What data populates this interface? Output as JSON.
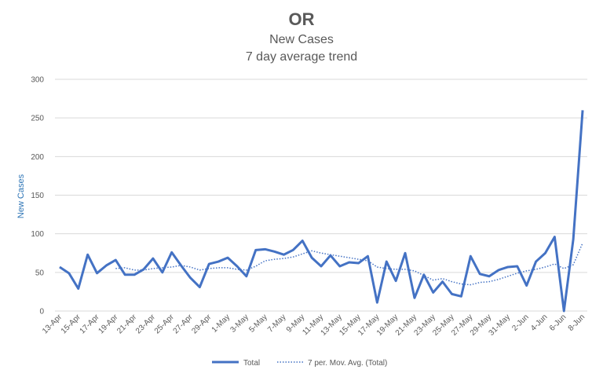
{
  "chart_data": {
    "type": "line",
    "title": "OR",
    "subtitle_1": "New Cases",
    "subtitle_2": "7 day average trend",
    "ylabel": "New Cases",
    "xlabel": "",
    "ylim": [
      0,
      300
    ],
    "yticks": [
      0,
      50,
      100,
      150,
      200,
      250,
      300
    ],
    "grid": "horizontal",
    "legend_position": "bottom",
    "x": [
      "13-Apr",
      "14-Apr",
      "15-Apr",
      "16-Apr",
      "17-Apr",
      "18-Apr",
      "19-Apr",
      "20-Apr",
      "21-Apr",
      "22-Apr",
      "23-Apr",
      "24-Apr",
      "25-Apr",
      "26-Apr",
      "27-Apr",
      "28-Apr",
      "29-Apr",
      "30-Apr",
      "1-May",
      "2-May",
      "3-May",
      "4-May",
      "5-May",
      "6-May",
      "7-May",
      "8-May",
      "9-May",
      "10-May",
      "11-May",
      "12-May",
      "13-May",
      "14-May",
      "15-May",
      "16-May",
      "17-May",
      "18-May",
      "19-May",
      "20-May",
      "21-May",
      "22-May",
      "23-May",
      "24-May",
      "25-May",
      "26-May",
      "27-May",
      "28-May",
      "29-May",
      "30-May",
      "31-May",
      "1-Jun",
      "2-Jun",
      "3-Jun",
      "4-Jun",
      "5-Jun",
      "6-Jun",
      "7-Jun",
      "8-Jun"
    ],
    "xtick_labels": [
      "13-Apr",
      "15-Apr",
      "17-Apr",
      "19-Apr",
      "21-Apr",
      "23-Apr",
      "25-Apr",
      "27-Apr",
      "29-Apr",
      "1-May",
      "3-May",
      "5-May",
      "7-May",
      "9-May",
      "11-May",
      "13-May",
      "15-May",
      "17-May",
      "19-May",
      "21-May",
      "23-May",
      "25-May",
      "27-May",
      "29-May",
      "31-May",
      "2-Jun",
      "4-Jun",
      "6-Jun",
      "8-Jun"
    ],
    "series": [
      {
        "name": "Total",
        "color": "#4472c4",
        "style": "solid",
        "values": [
          57,
          49,
          29,
          73,
          49,
          59,
          66,
          47,
          47,
          54,
          68,
          50,
          76,
          59,
          43,
          31,
          61,
          64,
          69,
          58,
          45,
          79,
          80,
          77,
          73,
          79,
          91,
          69,
          58,
          72,
          58,
          63,
          62,
          71,
          11,
          64,
          39,
          75,
          17,
          47,
          24,
          38,
          22,
          19,
          71,
          48,
          45,
          53,
          57,
          58,
          33,
          64,
          75,
          96,
          0,
          93,
          260
        ]
      },
      {
        "name": "7 per. Mov. Avg. (Total)",
        "color": "#4472c4",
        "style": "dotted",
        "values": [
          null,
          null,
          null,
          null,
          null,
          null,
          55,
          56,
          53,
          53,
          55,
          56,
          57,
          59,
          57,
          53,
          55,
          56,
          56,
          54,
          53,
          58,
          65,
          67,
          68,
          70,
          74,
          78,
          75,
          73,
          71,
          69,
          67,
          65,
          57,
          55,
          54,
          54,
          52,
          46,
          40,
          42,
          38,
          35,
          34,
          37,
          38,
          41,
          45,
          49,
          52,
          54,
          57,
          61,
          55,
          60,
          88
        ]
      }
    ]
  }
}
